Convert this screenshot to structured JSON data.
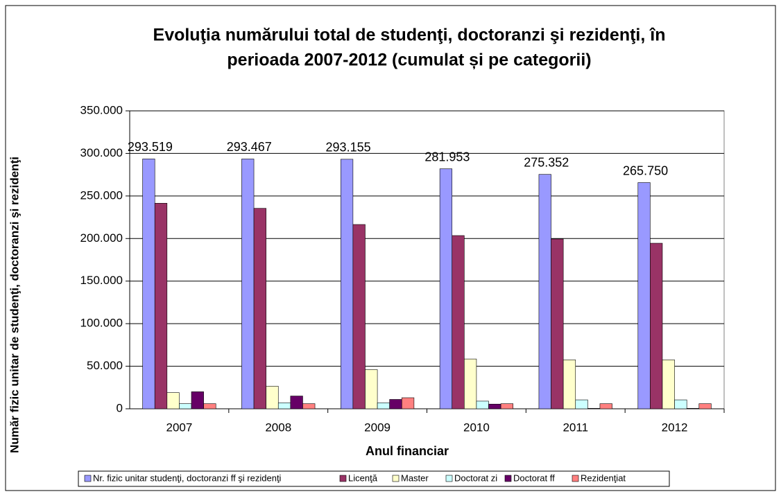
{
  "chart_data": {
    "type": "bar",
    "title": [
      "Evoluţia numărului total de studenţi, doctoranzi şi rezidenţi, în",
      "perioada 2007-2012 (cumulat și pe categorii)"
    ],
    "x_label": "Anul financiar",
    "y_label": "Număr fizic unitar de studenţi, doctoranzi şi rezidenţi",
    "categories": [
      "2007",
      "2008",
      "2009",
      "2010",
      "2011",
      "2012"
    ],
    "series": [
      {
        "name": "Nr. fizic unitar  studenţi,  doctoranzi  ff şi rezidenţi",
        "color": "#9999ff",
        "values": [
          293519,
          293467,
          293155,
          281953,
          275352,
          265750
        ],
        "value_labels": [
          "293.519",
          "293.467",
          "293.155",
          "281.953",
          "275.352",
          "265.750"
        ]
      },
      {
        "name": "Licenţă",
        "color": "#993366",
        "values": [
          241500,
          235500,
          216500,
          203500,
          199500,
          194500
        ]
      },
      {
        "name": "Master",
        "color": "#ffffcc",
        "values": [
          19000,
          26500,
          46000,
          58500,
          57500,
          57500
        ]
      },
      {
        "name": "Doctorat zi",
        "color": "#ccffff",
        "values": [
          6000,
          7000,
          7000,
          9000,
          10500,
          10500
        ]
      },
      {
        "name": "Doctorat ff",
        "color": "#660066",
        "values": [
          20000,
          15000,
          11000,
          5500,
          500,
          500
        ]
      },
      {
        "name": "Rezidenţiat",
        "color": "#ff8080",
        "values": [
          6000,
          6000,
          13000,
          6000,
          6000,
          6000
        ]
      }
    ],
    "ylim": [
      0,
      350000
    ],
    "yticks": [
      0,
      {
        "value": 50000,
        "label": "50.000"
      },
      {
        "value": 100000,
        "label": "100.000"
      },
      {
        "value": 150000,
        "label": "150.000"
      },
      {
        "value": 200000,
        "label": "200.000"
      },
      {
        "value": 250000,
        "label": "250.000"
      },
      {
        "value": 300000,
        "label": "300.000"
      },
      {
        "value": 350000,
        "label": "350.000"
      }
    ],
    "grid": true
  }
}
